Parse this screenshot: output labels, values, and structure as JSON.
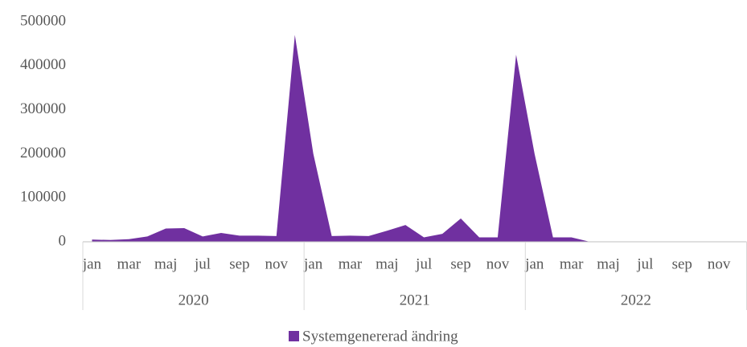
{
  "chart_data": {
    "type": "area",
    "categories": [
      "jan",
      null,
      "mar",
      null,
      "maj",
      null,
      "jul",
      null,
      "sep",
      null,
      "nov",
      null,
      "jan",
      null,
      "mar",
      null,
      "maj",
      null,
      "jul",
      null,
      "sep",
      null,
      "nov",
      null,
      "jan",
      null,
      "mar",
      null,
      "maj",
      null,
      "jul",
      null,
      "sep",
      null,
      "nov",
      null
    ],
    "category_groups": [
      "2020",
      "2021",
      "2022"
    ],
    "series": [
      {
        "name": "Systemgenererad ändring",
        "color": "#7030a0",
        "values": [
          5000,
          4000,
          6000,
          12000,
          30000,
          31000,
          12000,
          20000,
          14000,
          14000,
          13000,
          470000,
          200000,
          13000,
          14000,
          13000,
          25000,
          38000,
          10000,
          18000,
          53000,
          10000,
          10000,
          425000,
          200000,
          10000,
          10000,
          0,
          0,
          0,
          0,
          0,
          0,
          0,
          0,
          0
        ]
      }
    ],
    "ylim": [
      0,
      500000
    ],
    "yticks": [
      0,
      100000,
      200000,
      300000,
      400000,
      500000
    ],
    "grid": false,
    "legend": "bottom"
  }
}
